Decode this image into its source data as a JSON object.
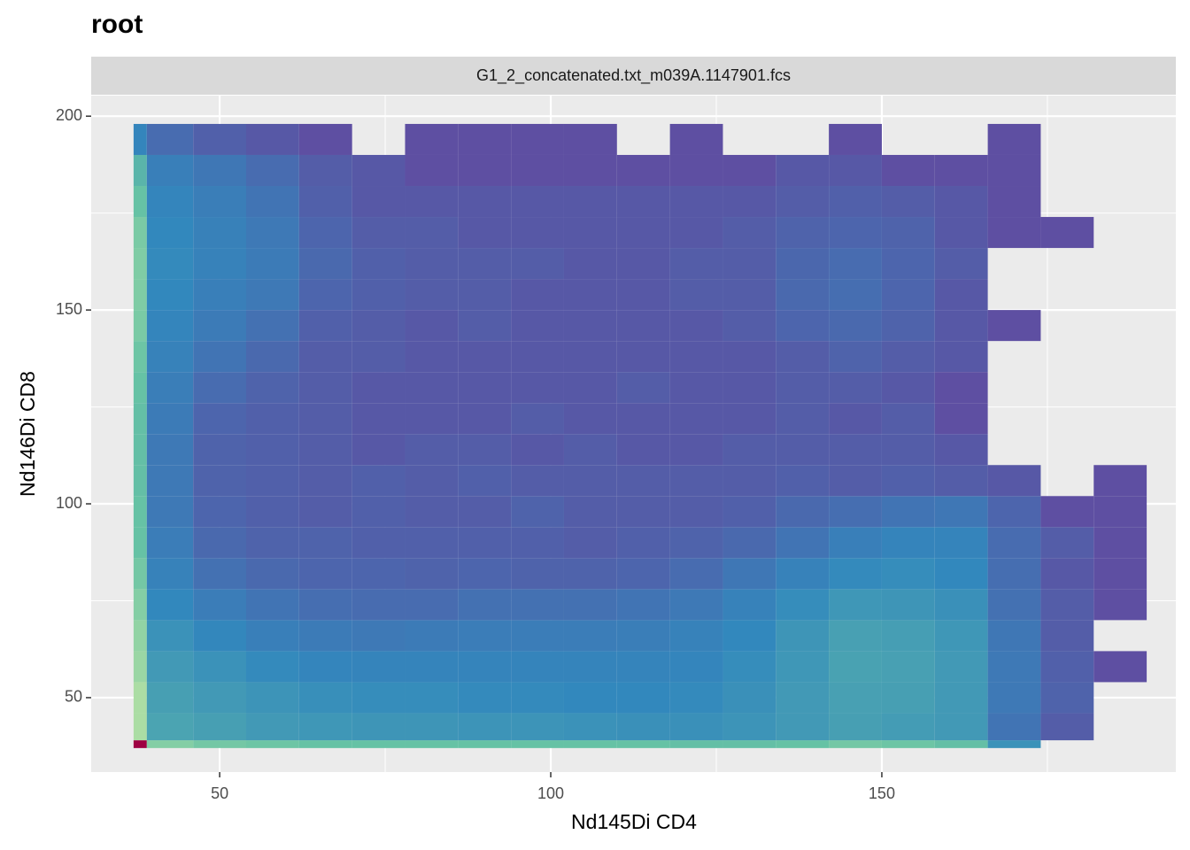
{
  "chart_data": {
    "type": "bin2d",
    "title": "root",
    "strip": "G1_2_concatenated.txt_m039A.1147901.fcs",
    "x_label": "Nd145Di CD4",
    "y_label": "Nd146Di CD8",
    "xlim": [
      30.6,
      194.4
    ],
    "ylim": [
      30.8,
      205.3
    ],
    "xticks": [
      50,
      100,
      150
    ],
    "yticks": [
      50,
      100,
      150,
      200
    ],
    "xminor": [
      75,
      125,
      175
    ],
    "yminor": [
      75,
      125,
      175
    ],
    "grid": true,
    "colors": [
      "#5e4fa2",
      "#3288bd",
      "#66c2a5",
      "#abdda4",
      "#9e0142"
    ],
    "color_stops": [
      0,
      0.5,
      0.75,
      0.85,
      1
    ],
    "xbins": [
      37,
      39,
      46,
      54,
      62,
      70,
      78,
      86,
      94,
      102,
      110,
      118,
      126,
      134,
      142,
      150,
      158,
      166,
      174,
      182,
      190
    ],
    "ybins": [
      37,
      39,
      46,
      54,
      62,
      70,
      78,
      86,
      94,
      102,
      110,
      118,
      126,
      134,
      142,
      150,
      158,
      166,
      174,
      182,
      190,
      198
    ],
    "counts": [
      [
        10000,
        1500,
        1200,
        1100,
        1000,
        1000,
        1000,
        1000,
        1000,
        1000,
        1000,
        900,
        900,
        1000,
        1200,
        1100,
        900,
        150,
        null,
        null
      ],
      [
        2500,
        300,
        250,
        200,
        180,
        170,
        170,
        160,
        160,
        150,
        140,
        140,
        160,
        200,
        250,
        220,
        200,
        20,
        3,
        null
      ],
      [
        2500,
        250,
        200,
        160,
        130,
        120,
        120,
        110,
        110,
        100,
        100,
        110,
        140,
        200,
        260,
        250,
        200,
        30,
        5,
        null
      ],
      [
        2000,
        200,
        150,
        110,
        80,
        70,
        70,
        70,
        70,
        70,
        70,
        80,
        120,
        180,
        280,
        260,
        200,
        30,
        4,
        1
      ],
      [
        1800,
        150,
        90,
        50,
        35,
        30,
        35,
        40,
        40,
        40,
        45,
        60,
        100,
        170,
        260,
        240,
        180,
        25,
        3,
        null
      ],
      [
        1500,
        100,
        40,
        20,
        12,
        10,
        10,
        15,
        15,
        15,
        20,
        30,
        60,
        120,
        180,
        170,
        140,
        15,
        3,
        1
      ],
      [
        1200,
        60,
        15,
        8,
        6,
        6,
        5,
        6,
        5,
        5,
        6,
        10,
        25,
        60,
        110,
        120,
        100,
        12,
        2,
        1
      ],
      [
        1000,
        40,
        8,
        5,
        5,
        4,
        4,
        4,
        4,
        3,
        4,
        5,
        8,
        20,
        50,
        70,
        70,
        10,
        3,
        1
      ],
      [
        1000,
        30,
        6,
        4,
        3,
        4,
        3,
        3,
        5,
        3,
        3,
        3,
        4,
        8,
        12,
        20,
        25,
        6,
        1,
        1
      ],
      [
        900,
        30,
        5,
        4,
        3,
        4,
        3,
        4,
        3,
        3,
        3,
        3,
        3,
        4,
        3,
        4,
        3,
        2,
        null,
        1
      ],
      [
        900,
        30,
        5,
        4,
        3,
        2,
        3,
        3,
        2,
        3,
        2,
        2,
        3,
        3,
        3,
        3,
        2,
        null,
        null,
        null
      ],
      [
        900,
        35,
        6,
        4,
        3,
        2,
        2,
        2,
        3,
        2,
        2,
        2,
        2,
        3,
        2,
        3,
        1,
        null,
        null,
        null
      ],
      [
        1000,
        45,
        10,
        5,
        3,
        2,
        2,
        2,
        2,
        2,
        3,
        2,
        2,
        3,
        3,
        2,
        1,
        null,
        null,
        null
      ],
      [
        1100,
        60,
        20,
        8,
        3,
        3,
        2,
        2,
        2,
        2,
        2,
        2,
        2,
        3,
        5,
        3,
        2,
        null,
        null,
        null
      ],
      [
        1300,
        80,
        35,
        15,
        4,
        3,
        2,
        3,
        2,
        2,
        2,
        2,
        3,
        6,
        8,
        5,
        2,
        1,
        null,
        null
      ],
      [
        1400,
        100,
        50,
        30,
        6,
        4,
        3,
        3,
        2,
        2,
        2,
        3,
        3,
        8,
        12,
        6,
        2,
        null,
        null,
        null
      ],
      [
        1400,
        110,
        60,
        35,
        8,
        4,
        3,
        3,
        3,
        2,
        2,
        3,
        3,
        7,
        10,
        6,
        3,
        null,
        null,
        null
      ],
      [
        1300,
        100,
        55,
        30,
        6,
        3,
        3,
        2,
        2,
        2,
        2,
        2,
        3,
        5,
        6,
        5,
        2,
        1,
        1,
        null
      ],
      [
        1000,
        80,
        45,
        20,
        4,
        2,
        2,
        2,
        2,
        2,
        2,
        2,
        2,
        3,
        4,
        3,
        2,
        1,
        null,
        null
      ],
      [
        600,
        50,
        25,
        10,
        3,
        2,
        1,
        1,
        1,
        1,
        1,
        1,
        1,
        2,
        2,
        1,
        1,
        1,
        null,
        null
      ],
      [
        80,
        10,
        4,
        2,
        1,
        null,
        1,
        1,
        1,
        1,
        null,
        1,
        null,
        null,
        1,
        null,
        null,
        1,
        null,
        null
      ]
    ]
  }
}
